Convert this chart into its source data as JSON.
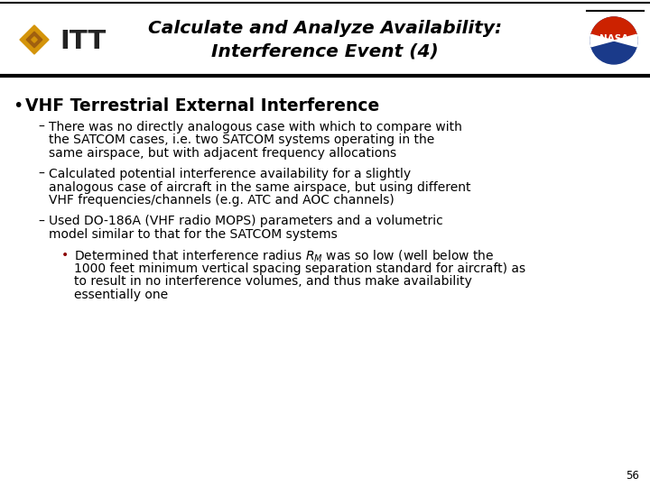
{
  "title_line1": "Calculate and Analyze Availability:",
  "title_line2": "Interference Event (4)",
  "background_color": "#ffffff",
  "title_color": "#000000",
  "bullet1": "VHF Terrestrial External Interference",
  "dash1_line1": "There was no directly analogous case with which to compare with",
  "dash1_line2": "the SATCOM cases, i.e. two SATCOM systems operating in the",
  "dash1_line3": "same airspace, but with adjacent frequency allocations",
  "dash2_line1": "Calculated potential interference availability for a slightly",
  "dash2_line2": "analogous case of aircraft in the same airspace, but using different",
  "dash2_line3": "VHF frequencies/channels (e.g. ATC and AOC channels)",
  "dash3_line1": "Used DO-186A (VHF radio MOPS) parameters and a volumetric",
  "dash3_line2": "model similar to that for the SATCOM systems",
  "sub_bullet_pre": "Determined that interference radius R",
  "sub_bullet_sub": "M",
  "sub_bullet_post": " was so low (well below the",
  "sub_bullet_line2": "1000 feet minimum vertical spacing separation standard for aircraft) as",
  "sub_bullet_line3": "to result in no interference volumes, and thus make availability",
  "sub_bullet_line4": "essentially one",
  "page_number": "56",
  "sub_bullet_color": "#8b0000",
  "dash_fontsize": 10.0,
  "bullet_fontsize": 13.5,
  "title_fontsize": 14.5
}
